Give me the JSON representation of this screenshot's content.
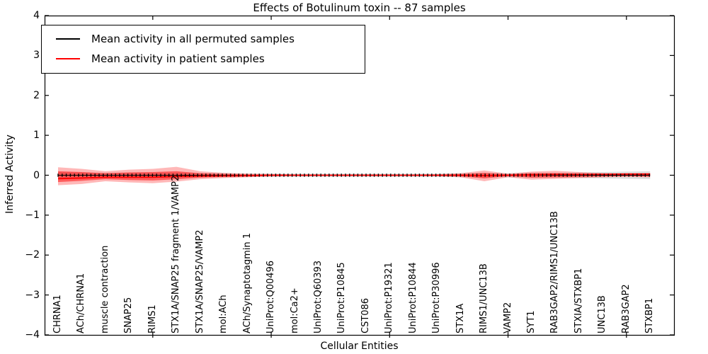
{
  "title": "Effects of Botulinum toxin -- 87 samples",
  "legend": {
    "items": [
      {
        "label": "Mean activity in all permuted samples",
        "color": "#000000"
      },
      {
        "label": "Mean activity in patient samples",
        "color": "#ff0000"
      }
    ]
  },
  "chart_data": {
    "type": "line",
    "title": "Effects of Botulinum toxin -- 87 samples",
    "xlabel": "Cellular Entities",
    "ylabel": "Inferred Activity",
    "ylim": [
      -4,
      4
    ],
    "yticks": [
      4,
      3,
      2,
      1,
      0,
      -1,
      -2,
      -3,
      -4
    ],
    "grid": false,
    "legend_position": "upper left",
    "tick_label_style": "x labels rotated 90deg inside axes",
    "categories": [
      "CHRNA1",
      "ACh/CHRNA1",
      "muscle contraction",
      "SNAP25",
      "RIMS1",
      "STX1A/SNAP25 fragment 1/VAMP2",
      "STX1A/SNAP25/VAMP2",
      "mol:ACh",
      "ACh/Synaptotagmin 1",
      "UniProt:Q00496",
      "mol:Ca2+",
      "UniProt:Q60393",
      "UniProt:P10845",
      "CST086",
      "UniProt:P19321",
      "UniProt:P10844",
      "UniProt:P30996",
      "STX1A",
      "RIMS1/UNC13B",
      "VAMP2",
      "SYT1",
      "RAB3GAP2/RIMS1/UNC13B",
      "STXIA/STXBP1",
      "UNC13B",
      "RAB3GAP2",
      "STXBP1"
    ],
    "series": [
      {
        "name": "Mean activity in all permuted samples",
        "color": "#000000",
        "marker": "tick",
        "values": [
          0,
          0,
          0,
          0,
          0,
          0,
          0,
          0,
          0,
          0,
          0,
          0,
          0,
          0,
          0,
          0,
          0,
          0,
          0,
          0,
          0,
          0,
          0,
          0,
          0,
          0
        ]
      },
      {
        "name": "Mean activity in patient samples",
        "color": "#ff0000",
        "marker": "none",
        "values": [
          -0.085,
          -0.07,
          -0.05,
          -0.05,
          -0.05,
          -0.03,
          -0.02,
          -0.015,
          -0.01,
          0,
          0,
          0,
          0,
          0,
          0,
          0,
          0,
          0,
          -0.01,
          0,
          0.01,
          0.02,
          0.02,
          0.025,
          0.03,
          0.03
        ]
      }
    ],
    "bands": [
      {
        "name": "permuted-samples-spread",
        "color": "rgba(0,0,0,0.13)",
        "hi": [
          0.08,
          0.07,
          0.06,
          0.06,
          0.06,
          0.06,
          0.05,
          0.05,
          0.04,
          0.04,
          0.04,
          0.04,
          0.04,
          0.04,
          0.04,
          0.04,
          0.04,
          0.05,
          0.05,
          0.05,
          0.06,
          0.06,
          0.07,
          0.08,
          0.09,
          0.1
        ],
        "lo": [
          -0.08,
          -0.07,
          -0.06,
          -0.06,
          -0.06,
          -0.06,
          -0.05,
          -0.05,
          -0.04,
          -0.04,
          -0.04,
          -0.04,
          -0.04,
          -0.04,
          -0.04,
          -0.04,
          -0.04,
          -0.05,
          -0.05,
          -0.05,
          -0.06,
          -0.06,
          -0.07,
          -0.08,
          -0.09,
          -0.1
        ]
      },
      {
        "name": "patient-samples-outer-spread",
        "color": "rgba(255,0,0,0.28)",
        "hi": [
          0.2,
          0.16,
          0.1,
          0.14,
          0.16,
          0.21,
          0.1,
          0.06,
          0.04,
          0.03,
          0.02,
          0.02,
          0.02,
          0.02,
          0.02,
          0.02,
          0.025,
          0.05,
          0.12,
          0.04,
          0.09,
          0.11,
          0.08,
          0.05,
          0.04,
          0.05
        ],
        "lo": [
          -0.25,
          -0.22,
          -0.15,
          -0.18,
          -0.2,
          -0.16,
          -0.1,
          -0.07,
          -0.05,
          -0.03,
          -0.02,
          -0.02,
          -0.02,
          -0.02,
          -0.02,
          -0.02,
          -0.025,
          -0.05,
          -0.15,
          -0.05,
          -0.11,
          -0.09,
          -0.07,
          -0.05,
          -0.04,
          -0.05
        ]
      },
      {
        "name": "patient-samples-inner-spread",
        "color": "rgba(255,0,0,0.5)",
        "hi": [
          0.1,
          0.08,
          0.05,
          0.07,
          0.08,
          0.1,
          0.05,
          0.03,
          0.02,
          0.015,
          0.01,
          0.01,
          0.01,
          0.01,
          0.01,
          0.01,
          0.012,
          0.025,
          0.06,
          0.02,
          0.05,
          0.05,
          0.04,
          0.03,
          0.02,
          0.03
        ],
        "lo": [
          -0.17,
          -0.14,
          -0.1,
          -0.12,
          -0.13,
          -0.1,
          -0.06,
          -0.04,
          -0.03,
          -0.015,
          -0.01,
          -0.01,
          -0.01,
          -0.01,
          -0.01,
          -0.01,
          -0.012,
          -0.025,
          -0.08,
          -0.02,
          -0.06,
          -0.05,
          -0.04,
          -0.03,
          -0.02,
          -0.03
        ]
      }
    ],
    "x_major_tick_indices": [
      4,
      9,
      14,
      19,
      24
    ]
  }
}
